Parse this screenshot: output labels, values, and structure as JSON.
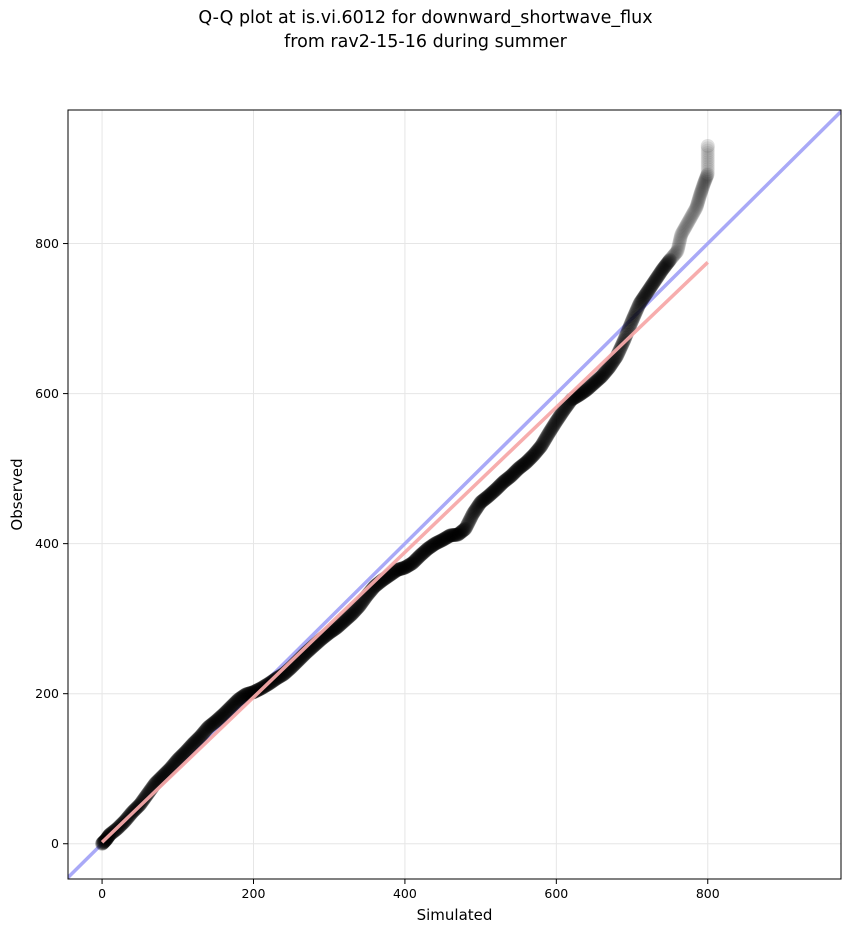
{
  "chart_data": {
    "type": "scatter",
    "title_lines": [
      "Q-Q plot at is.vi.6012 for downward_shortwave_flux",
      "from rav2-15-16 during summer"
    ],
    "xlabel": "Simulated",
    "ylabel": "Observed",
    "xlim": [
      -45,
      976
    ],
    "ylim": [
      -47,
      978
    ],
    "xticks": [
      0,
      200,
      400,
      600,
      800
    ],
    "yticks": [
      0,
      200,
      400,
      600,
      800
    ],
    "grid": true,
    "colors": {
      "points": "#000000",
      "identity_line": "#a9a9f7",
      "fit_line": "#f7a9a9"
    },
    "identity_line": {
      "from": [
        -45,
        -45
      ],
      "to": [
        976,
        976
      ]
    },
    "fit_line": {
      "from": [
        0,
        2
      ],
      "to": [
        800,
        775
      ]
    },
    "quantile_curve": [
      [
        0,
        0
      ],
      [
        5,
        5
      ],
      [
        10,
        12
      ],
      [
        20,
        20
      ],
      [
        30,
        30
      ],
      [
        40,
        42
      ],
      [
        50,
        52
      ],
      [
        60,
        66
      ],
      [
        70,
        80
      ],
      [
        80,
        90
      ],
      [
        90,
        100
      ],
      [
        100,
        112
      ],
      [
        110,
        122
      ],
      [
        120,
        133
      ],
      [
        130,
        143
      ],
      [
        140,
        155
      ],
      [
        150,
        163
      ],
      [
        160,
        172
      ],
      [
        170,
        182
      ],
      [
        180,
        192
      ],
      [
        190,
        199
      ],
      [
        200,
        202
      ],
      [
        210,
        207
      ],
      [
        220,
        213
      ],
      [
        230,
        220
      ],
      [
        240,
        226
      ],
      [
        250,
        235
      ],
      [
        260,
        245
      ],
      [
        270,
        255
      ],
      [
        280,
        264
      ],
      [
        290,
        273
      ],
      [
        300,
        281
      ],
      [
        310,
        288
      ],
      [
        320,
        297
      ],
      [
        330,
        306
      ],
      [
        340,
        317
      ],
      [
        350,
        331
      ],
      [
        360,
        343
      ],
      [
        370,
        351
      ],
      [
        380,
        358
      ],
      [
        390,
        365
      ],
      [
        400,
        368
      ],
      [
        410,
        374
      ],
      [
        420,
        384
      ],
      [
        430,
        393
      ],
      [
        440,
        400
      ],
      [
        450,
        405
      ],
      [
        460,
        411
      ],
      [
        470,
        412
      ],
      [
        480,
        420
      ],
      [
        490,
        440
      ],
      [
        500,
        455
      ],
      [
        510,
        463
      ],
      [
        520,
        472
      ],
      [
        530,
        482
      ],
      [
        540,
        490
      ],
      [
        550,
        500
      ],
      [
        560,
        508
      ],
      [
        570,
        518
      ],
      [
        580,
        530
      ],
      [
        590,
        547
      ],
      [
        600,
        563
      ],
      [
        610,
        578
      ],
      [
        620,
        592
      ],
      [
        630,
        598
      ],
      [
        640,
        605
      ],
      [
        650,
        614
      ],
      [
        660,
        623
      ],
      [
        670,
        635
      ],
      [
        680,
        650
      ],
      [
        690,
        672
      ],
      [
        700,
        697
      ],
      [
        710,
        720
      ],
      [
        720,
        735
      ],
      [
        730,
        750
      ],
      [
        740,
        765
      ],
      [
        750,
        778
      ],
      [
        760,
        790
      ],
      [
        765,
        812
      ],
      [
        775,
        830
      ],
      [
        785,
        848
      ],
      [
        790,
        865
      ],
      [
        795,
        880
      ],
      [
        800,
        893
      ],
      [
        800,
        930
      ]
    ]
  }
}
